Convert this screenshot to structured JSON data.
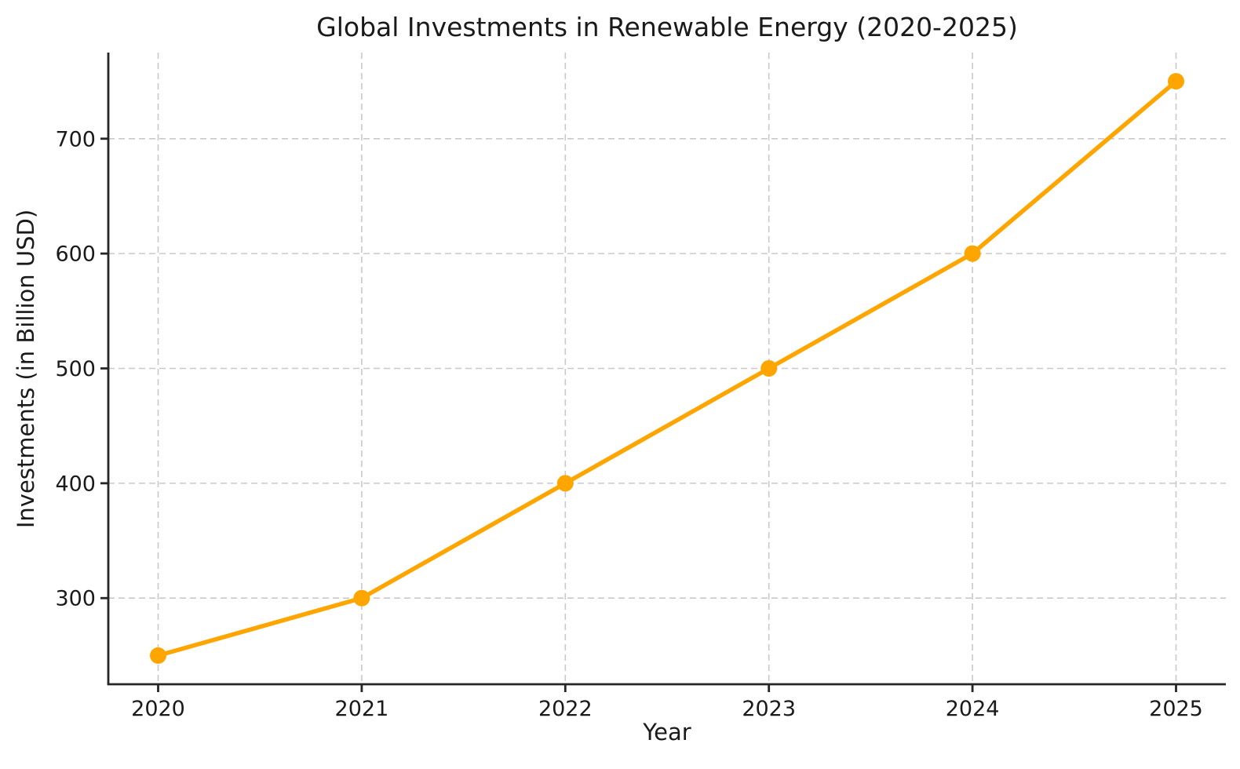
{
  "chart_data": {
    "type": "line",
    "title": "Global Investments in Renewable Energy (2020-2025)",
    "xlabel": "Year",
    "ylabel": "Investments (in Billion USD)",
    "categories": [
      "2020",
      "2021",
      "2022",
      "2023",
      "2024",
      "2025"
    ],
    "series": [
      {
        "name": "Investments",
        "values": [
          250,
          300,
          400,
          500,
          600,
          750
        ]
      }
    ],
    "ylim": [
      225,
      775
    ],
    "yticks": [
      300,
      400,
      500,
      600,
      700
    ],
    "grid": true,
    "grid_style": "dashed",
    "legend": "none",
    "marker": "circle",
    "colors": {
      "line": "#FFA500",
      "marker": "#FFA500",
      "grid": "#c9c9c9",
      "spine": "#262626",
      "text": "#1a1a1a",
      "background": "#ffffff"
    }
  }
}
